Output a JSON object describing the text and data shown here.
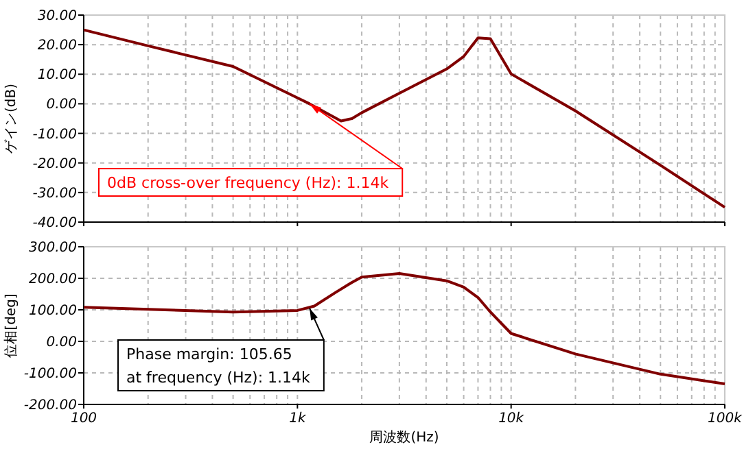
{
  "chart_data": [
    {
      "type": "line",
      "ylabel": "ゲイン(dB)",
      "log": "x",
      "grid": true,
      "tick_labels": "y",
      "marker": "none",
      "line_style": "solid",
      "xlim": [
        100,
        100000
      ],
      "xticks": [
        {
          "value": 100,
          "label": null
        },
        {
          "value": 1000,
          "label": null
        },
        {
          "value": 10000,
          "label": null
        },
        {
          "value": 100000,
          "label": null
        }
      ],
      "ylim": [
        -40,
        30
      ],
      "yticks": [
        {
          "value": -40,
          "label": "-40.00"
        },
        {
          "value": -30,
          "label": "-30.00"
        },
        {
          "value": -20,
          "label": "-20.00"
        },
        {
          "value": -10,
          "label": "-10.00"
        },
        {
          "value": 0,
          "label": "0.00"
        },
        {
          "value": 10,
          "label": "10.00"
        },
        {
          "value": 20,
          "label": "20.00"
        },
        {
          "value": 30,
          "label": "30.00"
        }
      ],
      "series": [
        {
          "color": "#800000",
          "x": [
            100,
            200,
            500,
            1000,
            1140,
            1600,
            1800,
            2000,
            3000,
            5000,
            6000,
            7000,
            8000,
            10000,
            20000,
            50000,
            100000
          ],
          "values": [
            25,
            19.6,
            12.6,
            2,
            0,
            -5.8,
            -5,
            -3,
            3.6,
            11.8,
            16,
            22.3,
            22,
            10.1,
            -2.4,
            -20.8,
            -35
          ]
        }
      ],
      "annotations": [
        {
          "text": "0dB cross-over frequency (Hz): 1.14k",
          "x": 1140,
          "y": 0
        }
      ]
    },
    {
      "type": "line",
      "ylabel": "位相[deg]",
      "xlabel": "周波数(Hz)",
      "log": "x",
      "grid": true,
      "marker": "none",
      "line_style": "solid",
      "xlim": [
        100,
        100000
      ],
      "xticks": [
        {
          "value": 100,
          "label": "100"
        },
        {
          "value": 1000,
          "label": "1k"
        },
        {
          "value": 10000,
          "label": "10k"
        },
        {
          "value": 100000,
          "label": "100k"
        }
      ],
      "ylim": [
        -200,
        300
      ],
      "yticks": [
        {
          "value": -200,
          "label": "-200.00"
        },
        {
          "value": -100,
          "label": "-100.00"
        },
        {
          "value": 0,
          "label": "0.00"
        },
        {
          "value": 100,
          "label": "100.00"
        },
        {
          "value": 200,
          "label": "200.00"
        },
        {
          "value": 300,
          "label": "300.00"
        }
      ],
      "series": [
        {
          "color": "#800000",
          "x": [
            100,
            500,
            1000,
            1200,
            1500,
            1800,
            2000,
            3000,
            5000,
            6000,
            7000,
            8000,
            10000,
            20000,
            50000,
            100000
          ],
          "values": [
            108,
            93,
            98,
            112,
            154,
            187,
            204,
            215,
            192,
            172,
            139,
            93,
            25,
            -40,
            -104,
            -135
          ]
        }
      ],
      "annotations": [
        {
          "text": "Phase margin: 105.65\n at frequency (Hz): 1.14k",
          "x": 1140,
          "y": 105
        }
      ]
    }
  ]
}
